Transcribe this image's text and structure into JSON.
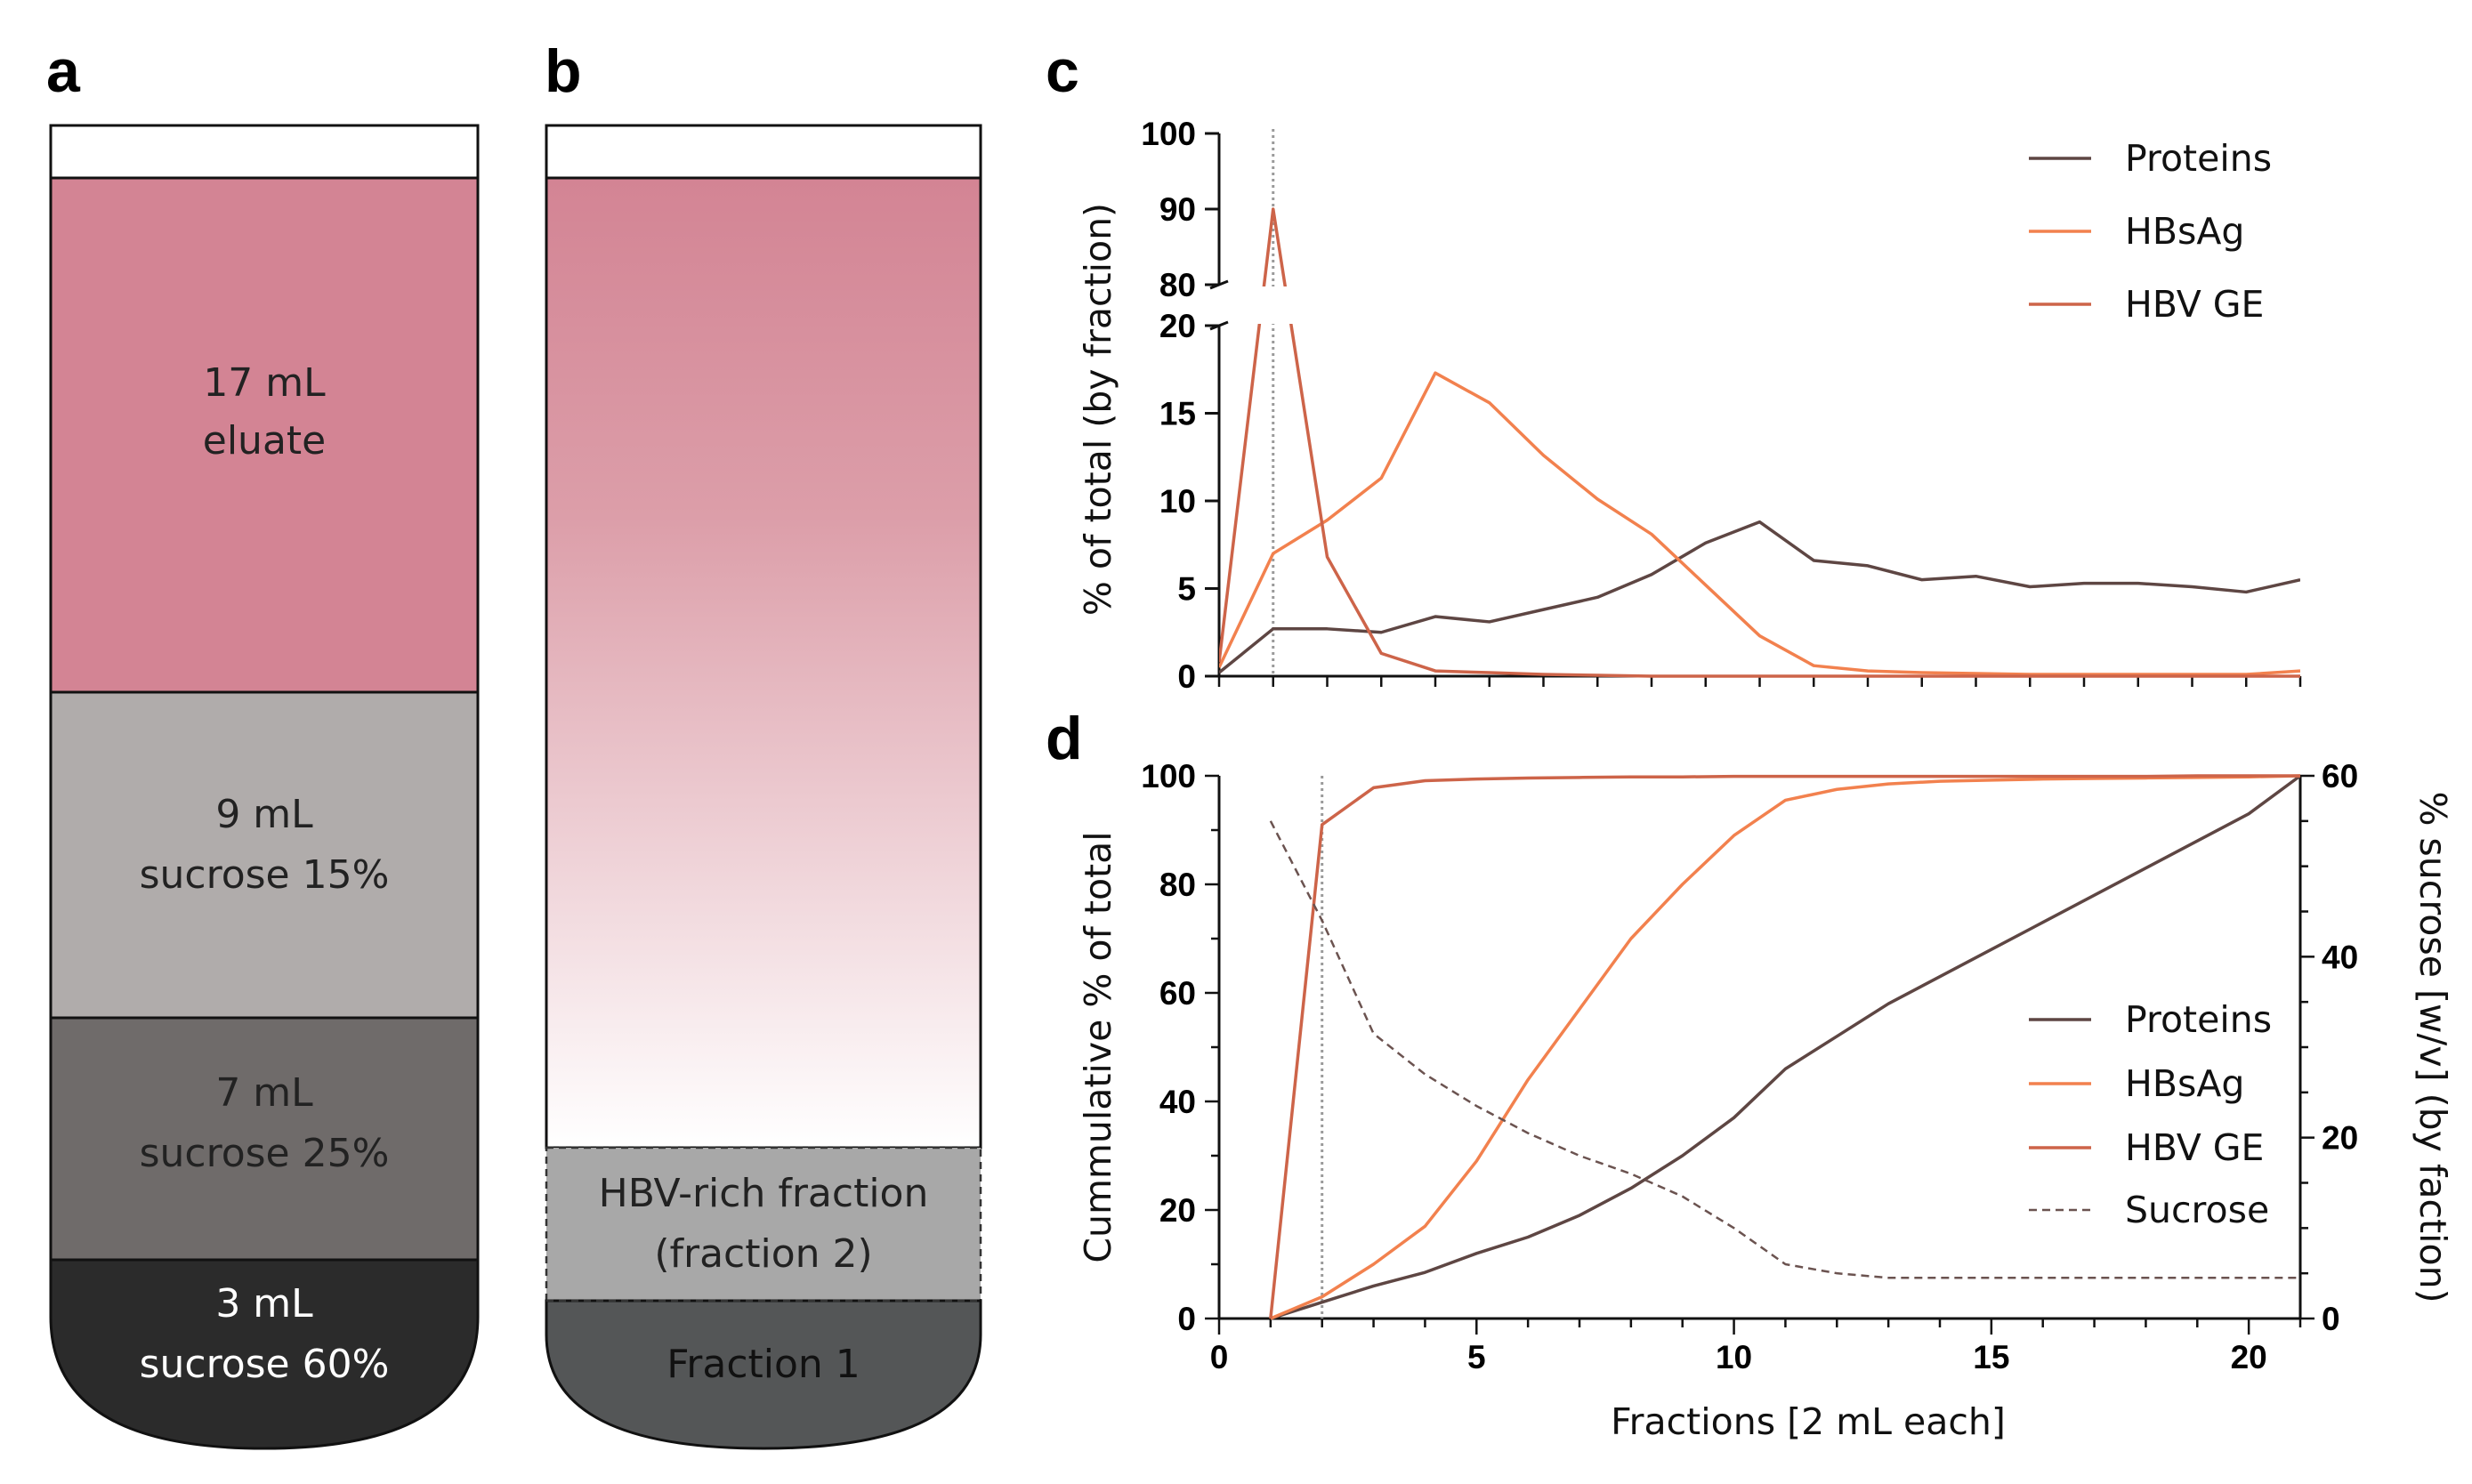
{
  "panels": {
    "a": "a",
    "b": "b",
    "c": "c",
    "d": "d"
  },
  "tube_a": {
    "layers": [
      {
        "line1": "17 mL",
        "line2": "eluate",
        "color": "#d38494"
      },
      {
        "line1": "9 mL",
        "line2": "sucrose 15%",
        "color": "#b0acab"
      },
      {
        "line1": "7 mL",
        "line2": "sucrose 25%",
        "color": "#6f6b6a"
      },
      {
        "line1": "3 mL",
        "line2": "sucrose 60%",
        "color": "#2b2b2b"
      }
    ]
  },
  "tube_b": {
    "hbv_fraction": {
      "line1": "HBV-rich fraction",
      "line2": "(fraction 2)",
      "color": "#a8a8a8"
    },
    "fraction1": {
      "label": "Fraction 1",
      "color": "#545657"
    },
    "gradient_top": "#d38494"
  },
  "colors": {
    "proteins": "#5e4643",
    "hbsag": "#f2814e",
    "hbvge": "#cd6449",
    "sucrose": "#6b5350"
  },
  "chart_data": [
    {
      "panel": "c",
      "type": "line",
      "ylabel": "% of total  (by fraction)",
      "xlabel": "",
      "broken_y_axis": {
        "lower_range": [
          0,
          20
        ],
        "upper_range": [
          80,
          100
        ]
      },
      "lower_ticks": [
        "0",
        "5",
        "10",
        "15",
        "20"
      ],
      "upper_ticks": [
        "80",
        "90",
        "100"
      ],
      "xlim": [
        1,
        21
      ],
      "reference_line_x": 2,
      "legend": [
        "Proteins",
        "HBsAg",
        "HBV GE"
      ],
      "legend_position": "top-right",
      "x": [
        1,
        2,
        3,
        4,
        5,
        6,
        7,
        8,
        9,
        10,
        11,
        12,
        13,
        14,
        15,
        16,
        17,
        18,
        19,
        20,
        21
      ],
      "series": [
        {
          "name": "Proteins",
          "values": [
            0.2,
            2.7,
            2.7,
            2.5,
            3.4,
            3.1,
            3.8,
            4.5,
            5.8,
            7.6,
            8.8,
            6.6,
            6.3,
            5.5,
            5.7,
            5.1,
            5.3,
            5.3,
            5.1,
            4.8,
            5.5
          ]
        },
        {
          "name": "HBsAg",
          "values": [
            0.5,
            7.0,
            8.9,
            11.3,
            17.3,
            15.6,
            12.6,
            10.1,
            8.1,
            5.2,
            2.3,
            0.6,
            0.3,
            0.2,
            0.15,
            0.1,
            0.1,
            0.1,
            0.1,
            0.1,
            0.3
          ]
        },
        {
          "name": "HBV GE",
          "values": [
            0.8,
            90,
            6.8,
            1.3,
            0.3,
            0.2,
            0.1,
            0.05,
            0,
            0,
            0,
            0,
            0,
            0,
            0,
            0,
            0,
            0,
            0,
            0,
            0
          ]
        }
      ]
    },
    {
      "panel": "d",
      "type": "line",
      "ylabel": "Cummulative  % of total",
      "y2label": "% sucrose [w/v]  (by faction)",
      "xlabel": "Fractions [2 mL each]",
      "xlim": [
        0,
        21
      ],
      "ylim": [
        0,
        100
      ],
      "y2lim": [
        0,
        60
      ],
      "x_ticks": [
        "0",
        "5",
        "10",
        "15",
        "20"
      ],
      "y_ticks": [
        "0",
        "20",
        "40",
        "60",
        "80",
        "100"
      ],
      "y2_ticks": [
        "0",
        "20",
        "40",
        "60"
      ],
      "reference_line_x": 2,
      "legend": [
        "Proteins",
        "HBsAg",
        "HBV GE",
        "Sucrose"
      ],
      "legend_position": "bottom-right",
      "x": [
        1,
        2,
        3,
        4,
        5,
        6,
        7,
        8,
        9,
        10,
        11,
        12,
        13,
        14,
        15,
        16,
        17,
        18,
        19,
        20,
        21
      ],
      "series": [
        {
          "name": "Proteins",
          "axis": "left",
          "values": [
            0,
            3,
            6,
            8.5,
            12,
            15,
            19,
            24,
            30,
            37,
            46,
            52,
            58,
            63,
            68,
            73,
            78,
            83,
            88,
            93,
            100
          ]
        },
        {
          "name": "HBsAg",
          "axis": "left",
          "values": [
            0,
            4,
            10,
            17,
            29,
            44,
            57,
            70,
            80,
            89,
            95.5,
            97.5,
            98.5,
            99,
            99.2,
            99.4,
            99.5,
            99.6,
            99.7,
            99.8,
            100
          ]
        },
        {
          "name": "HBV GE",
          "axis": "left",
          "values": [
            0,
            91,
            97.8,
            99.1,
            99.4,
            99.6,
            99.7,
            99.8,
            99.8,
            99.9,
            99.9,
            99.9,
            99.9,
            99.9,
            99.9,
            99.9,
            99.9,
            99.9,
            100,
            100,
            100
          ]
        },
        {
          "name": "Sucrose",
          "axis": "right",
          "dashed": true,
          "values": [
            55,
            44,
            31.5,
            27,
            23.5,
            20.5,
            18,
            16,
            13.5,
            10,
            6,
            5,
            4.5,
            4.5,
            4.5,
            4.5,
            4.5,
            4.5,
            4.5,
            4.5,
            4.5
          ]
        }
      ]
    }
  ]
}
